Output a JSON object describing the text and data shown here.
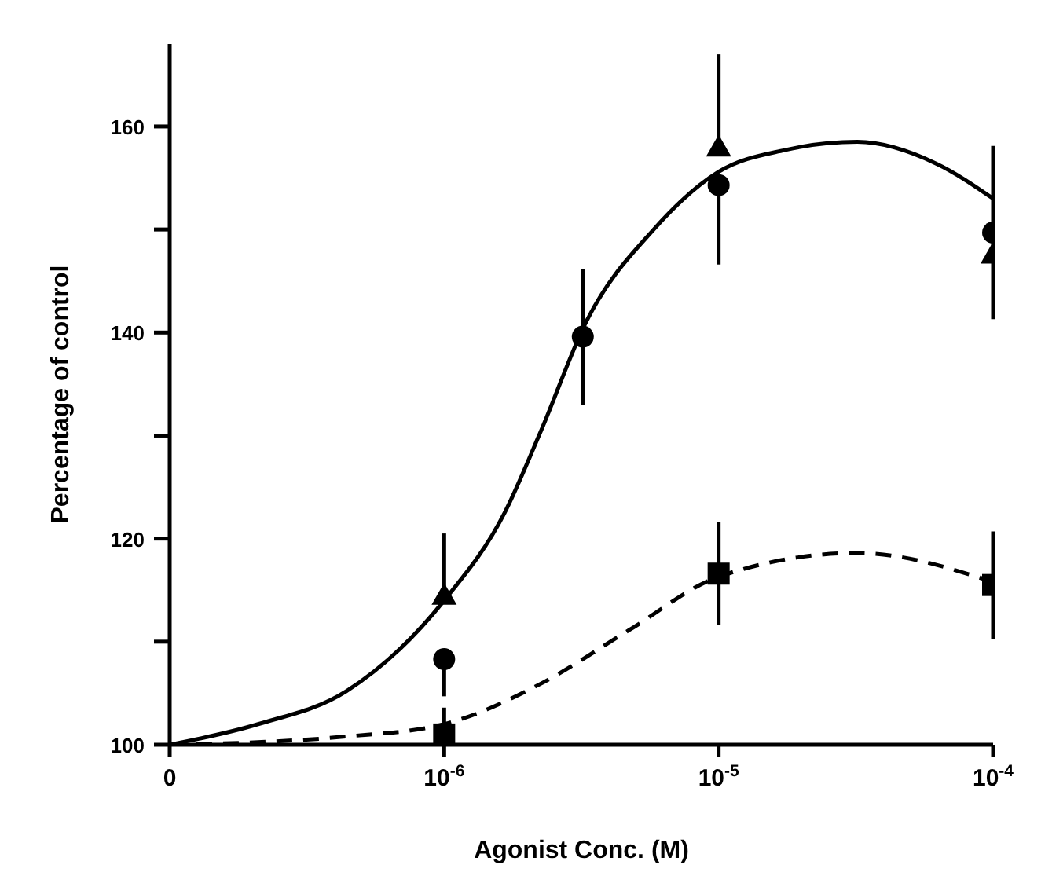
{
  "chart_data": {
    "type": "scatter",
    "xlabel": "Agonist Conc. (M)",
    "ylabel": "Percentage of control",
    "log": "x",
    "xlim": [
      1e-07,
      0.0001
    ],
    "xticks": [
      {
        "value": 1e-07,
        "label": "0"
      },
      {
        "value": 1e-06,
        "label": "10$^{-6}$"
      },
      {
        "value": 1e-05,
        "label": "10$^{-5}$"
      },
      {
        "value": 0.0001,
        "label": "10$^{-4}$"
      }
    ],
    "ylim": [
      100,
      168
    ],
    "yticks": [
      100,
      {
        "value": 110,
        "label": null
      },
      120,
      {
        "value": 130,
        "label": null
      },
      140,
      {
        "value": 150,
        "label": null
      },
      160
    ],
    "grid": false,
    "legend": false,
    "series": [
      {
        "marker": "circle",
        "color": "#000000",
        "x": [
          1e-06,
          3.2e-06,
          1e-05,
          0.0001
        ],
        "values": [
          108.3,
          139.6,
          154.3,
          149.7
        ],
        "errors": [
          [
            104.7,
            108.3
          ],
          6.6,
          [
            146.6,
            154.3
          ],
          8.4
        ]
      },
      {
        "marker": "triangle",
        "color": "#000000",
        "x": [
          1e-06,
          1e-05,
          0.0001
        ],
        "values": [
          114.5,
          158.0,
          147.6
        ],
        "errors": [
          [
            114.5,
            120.5
          ],
          [
            158.0,
            167.0
          ],
          null
        ]
      },
      {
        "marker": "square",
        "color": "#000000",
        "x": [
          1e-06,
          1e-05,
          0.0001
        ],
        "values": [
          101.0,
          116.6,
          115.5
        ],
        "errors": [
          [
            101.0,
            103.6
          ],
          5,
          5.2
        ]
      },
      {
        "type": "line",
        "marker": "none",
        "line_style": "solid",
        "color": "#000000",
        "x": [
          1e-07,
          2.1e-07,
          4.4e-07,
          1e-06,
          1.66e-06,
          2.24e-06,
          3.3e-06,
          5.8e-06,
          1e-05,
          1.74e-05,
          3.2e-05,
          6.2e-05,
          0.0001
        ],
        "values": [
          100,
          102,
          105.2,
          114,
          122.5,
          130.3,
          141.1,
          150,
          155.6,
          157.7,
          158.5,
          156.4,
          153
        ]
      },
      {
        "type": "line",
        "marker": "none",
        "line_style": "dashed",
        "color": "#000000",
        "x": [
          1e-07,
          4.4e-07,
          1e-06,
          2.24e-06,
          4.7e-06,
          1e-05,
          3.2e-05,
          0.0001
        ],
        "values": [
          100,
          100.8,
          102,
          105.9,
          111.1,
          116.3,
          118.6,
          115.8
        ]
      }
    ]
  }
}
